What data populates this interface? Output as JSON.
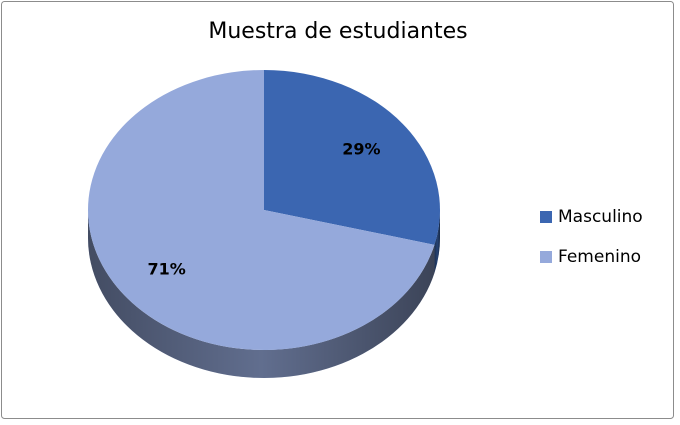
{
  "chart_data": {
    "type": "pie",
    "title": "Muestra de estudiantes",
    "categories": [
      "Masculino",
      "Femenino"
    ],
    "values": [
      29,
      71
    ],
    "value_labels": [
      "29%",
      "71%"
    ],
    "colors": [
      "#3b66b1",
      "#95a9db"
    ],
    "legend": "right"
  }
}
